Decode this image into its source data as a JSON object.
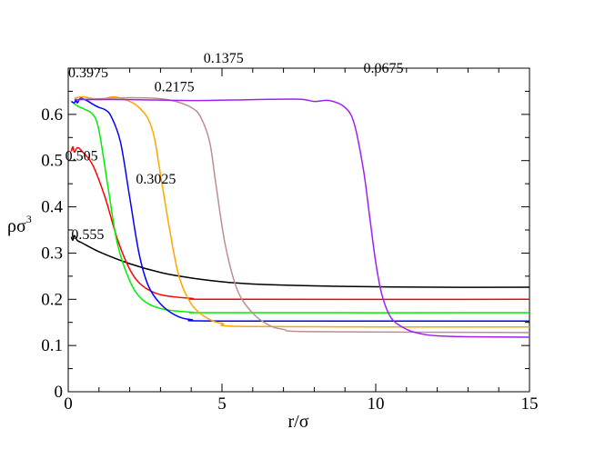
{
  "chart_data": {
    "type": "line",
    "title": "",
    "xlabel": "r/σ",
    "ylabel": {
      "base": "ρσ",
      "sup": "3"
    },
    "xlim": [
      0,
      15
    ],
    "ylim": [
      0,
      0.7
    ],
    "xticks": [
      0,
      5,
      10,
      15
    ],
    "yticks": [
      0,
      0.1,
      0.2,
      0.3,
      0.4,
      0.5,
      0.6
    ],
    "xtick_labels": [
      "0",
      "5",
      "10",
      "15"
    ],
    "ytick_labels": [
      "0",
      "0.1",
      "0.2",
      "0.3",
      "0.4",
      "0.5",
      "0.6"
    ],
    "grid": false,
    "series": [
      {
        "name": "0.555",
        "color": "#000000",
        "x": [
          0.1,
          0.15,
          0.2,
          0.3,
          0.45,
          1,
          2,
          3,
          4,
          5,
          6,
          8,
          10,
          12,
          15
        ],
        "y": [
          0.335,
          0.328,
          0.338,
          0.327,
          0.322,
          0.303,
          0.277,
          0.258,
          0.246,
          0.238,
          0.233,
          0.229,
          0.227,
          0.226,
          0.226
        ],
        "label": "0.555",
        "label_pos": [
          0.1,
          0.33
        ]
      },
      {
        "name": "0.505",
        "color": "#ff0000",
        "x": [
          0.1,
          0.15,
          0.2,
          0.3,
          0.45,
          0.8,
          1.2,
          1.6,
          2.0,
          2.4,
          3.0,
          4.0,
          5.0,
          15
        ],
        "y": [
          0.52,
          0.53,
          0.518,
          0.528,
          0.52,
          0.49,
          0.42,
          0.33,
          0.265,
          0.23,
          0.21,
          0.202,
          0.2,
          0.2
        ],
        "label": "0.505",
        "label_pos": [
          -0.1,
          0.5
        ]
      },
      {
        "name": "0.3975",
        "color": "#00ee00",
        "x": [
          0.1,
          0.3,
          0.5,
          0.8,
          1.0,
          1.3,
          1.6,
          2.0,
          2.4,
          3.0,
          4.0,
          5.0,
          15
        ],
        "y": [
          0.628,
          0.618,
          0.612,
          0.6,
          0.565,
          0.44,
          0.32,
          0.24,
          0.2,
          0.18,
          0.172,
          0.171,
          0.171
        ],
        "label": "0.3975",
        "label_pos": [
          0.0,
          0.68
        ]
      },
      {
        "name": "0.3025",
        "color": "#0000ff",
        "x": [
          0.1,
          0.2,
          0.25,
          0.3,
          0.4,
          0.6,
          0.8,
          1.0,
          1.2,
          1.4,
          1.7,
          2.0,
          2.3,
          2.6,
          3.0,
          3.5,
          4.0,
          5.0,
          15
        ],
        "y": [
          0.628,
          0.625,
          0.632,
          0.625,
          0.635,
          0.63,
          0.622,
          0.615,
          0.61,
          0.595,
          0.54,
          0.42,
          0.3,
          0.23,
          0.19,
          0.165,
          0.156,
          0.153,
          0.153
        ],
        "label": "0.3025",
        "label_pos": [
          2.2,
          0.45
        ]
      },
      {
        "name": "0.2175",
        "color": "#ffa500",
        "x": [
          0.2,
          0.5,
          1.0,
          1.5,
          2.0,
          2.3,
          2.6,
          2.8,
          3.0,
          3.3,
          3.6,
          4.0,
          4.5,
          5.0,
          6.0,
          15
        ],
        "y": [
          0.635,
          0.638,
          0.632,
          0.638,
          0.628,
          0.615,
          0.59,
          0.55,
          0.47,
          0.35,
          0.25,
          0.19,
          0.16,
          0.148,
          0.141,
          0.14
        ],
        "label": "0.2175",
        "label_pos": [
          2.8,
          0.65
        ]
      },
      {
        "name": "0.1375",
        "color": "#bc8f8f",
        "x": [
          0.2,
          1.0,
          2.0,
          3.0,
          3.5,
          4.0,
          4.3,
          4.6,
          4.8,
          5.1,
          5.5,
          6.0,
          6.5,
          7.0,
          8.0,
          15
        ],
        "y": [
          0.632,
          0.634,
          0.636,
          0.634,
          0.628,
          0.615,
          0.595,
          0.54,
          0.45,
          0.32,
          0.22,
          0.17,
          0.145,
          0.135,
          0.13,
          0.128
        ],
        "label": "0.1375",
        "label_pos": [
          4.4,
          0.712
        ]
      },
      {
        "name": "0.0675",
        "color": "#a020f0",
        "x": [
          0.2,
          2.0,
          4.0,
          6.0,
          7.5,
          8.0,
          8.5,
          9.0,
          9.3,
          9.6,
          9.8,
          10.0,
          10.2,
          10.5,
          11.0,
          11.5,
          12.0,
          13.0,
          15
        ],
        "y": [
          0.632,
          0.632,
          0.63,
          0.632,
          0.633,
          0.628,
          0.63,
          0.615,
          0.58,
          0.48,
          0.38,
          0.28,
          0.21,
          0.16,
          0.135,
          0.125,
          0.121,
          0.119,
          0.118
        ],
        "label": "0.0675",
        "label_pos": [
          9.6,
          0.69
        ]
      }
    ]
  }
}
